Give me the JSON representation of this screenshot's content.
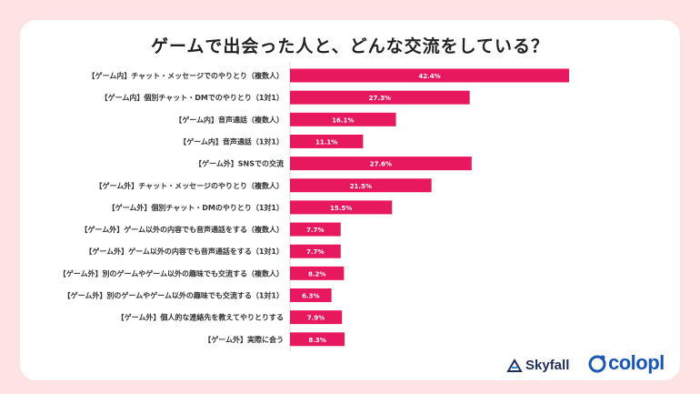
{
  "chart_data": {
    "type": "bar",
    "orientation": "horizontal",
    "title": "ゲームで出会った人と、どんな交流をしている？",
    "categories": [
      "【ゲーム内】チャット・メッセージでのやりとり（複数人）",
      "【ゲーム内】個別チャット・DMでのやりとり（1対1）",
      "【ゲーム内】音声通話（複数人）",
      "【ゲーム内】音声通話（1対1）",
      "【ゲーム外】SNSでの交流",
      "【ゲーム外】チャット・メッセージのやりとり（複数人）",
      "【ゲーム外】個別チャット・DMのやりとり（1対1）",
      "【ゲーム外】ゲーム以外の内容でも音声通話をする（複数人）",
      "【ゲーム外】ゲーム以外の内容でも音声通話をする（1対1）",
      "【ゲーム外】別のゲームやゲーム以外の趣味でも交流する（複数人）",
      "【ゲーム外】別のゲームやゲーム以外の趣味でも交流する（1対1）",
      "【ゲーム外】個人的な連絡先を教えてやりとりする",
      "【ゲーム外】実際に会う"
    ],
    "values": [
      42.4,
      27.3,
      16.1,
      11.1,
      27.6,
      21.5,
      15.5,
      7.7,
      7.7,
      8.2,
      6.3,
      7.9,
      8.3
    ],
    "value_labels": [
      "42.4%",
      "27.3%",
      "16.1%",
      "11.1%",
      "27.6%",
      "21.5%",
      "15.5%",
      "7.7%",
      "7.7%",
      "8.2%",
      "6.3%",
      "7.9%",
      "8.3%"
    ],
    "unit": "%",
    "xlim": [
      0,
      50
    ],
    "bar_color": "#e8185f",
    "grid": false,
    "legend": "none"
  },
  "logos": {
    "skyfall": "Skyfall",
    "colopl": "colopl"
  },
  "colors": {
    "background": "#fde3e3",
    "card": "#ffffff",
    "bar": "#e8185f",
    "colopl_blue": "#1a56b4",
    "skyfall_navy": "#1f2d5a"
  }
}
